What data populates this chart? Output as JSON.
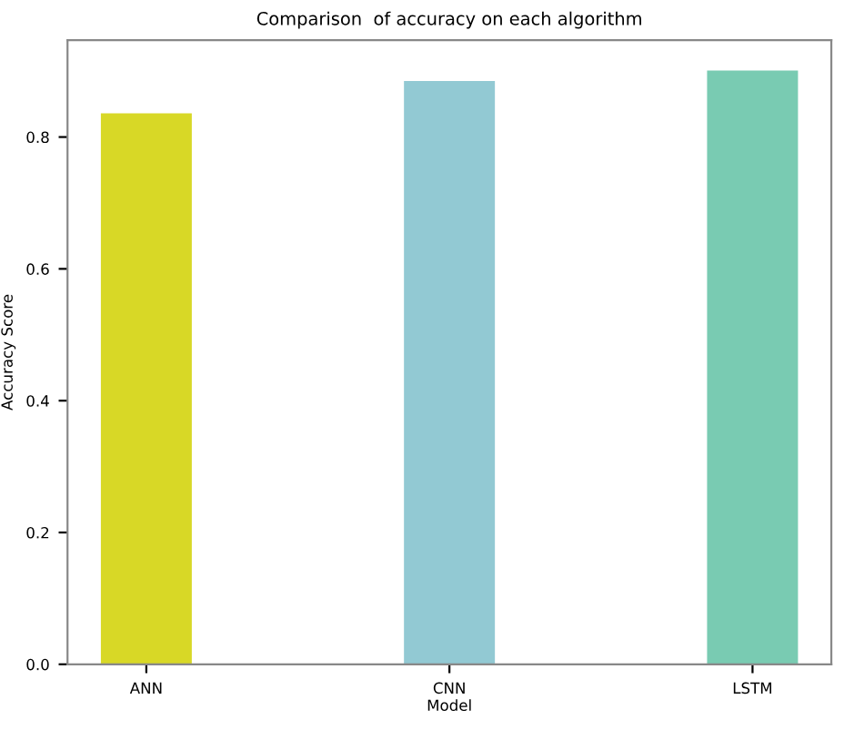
{
  "chart_data": {
    "type": "bar",
    "title": "Comparison  of accuracy on each algorithm",
    "xlabel": "Model",
    "ylabel": "Accuracy Score",
    "categories": [
      "ANN",
      "CNN",
      "LSTM"
    ],
    "values": [
      0.836,
      0.885,
      0.901
    ],
    "colors": [
      "#d8d826",
      "#92c9d3",
      "#79cbb2"
    ],
    "ylim": [
      0,
      0.947
    ],
    "yticks": [
      {
        "value": 0,
        "label": "0.0"
      },
      0.2,
      0.4,
      0.6,
      0.8
    ],
    "grid": false
  }
}
